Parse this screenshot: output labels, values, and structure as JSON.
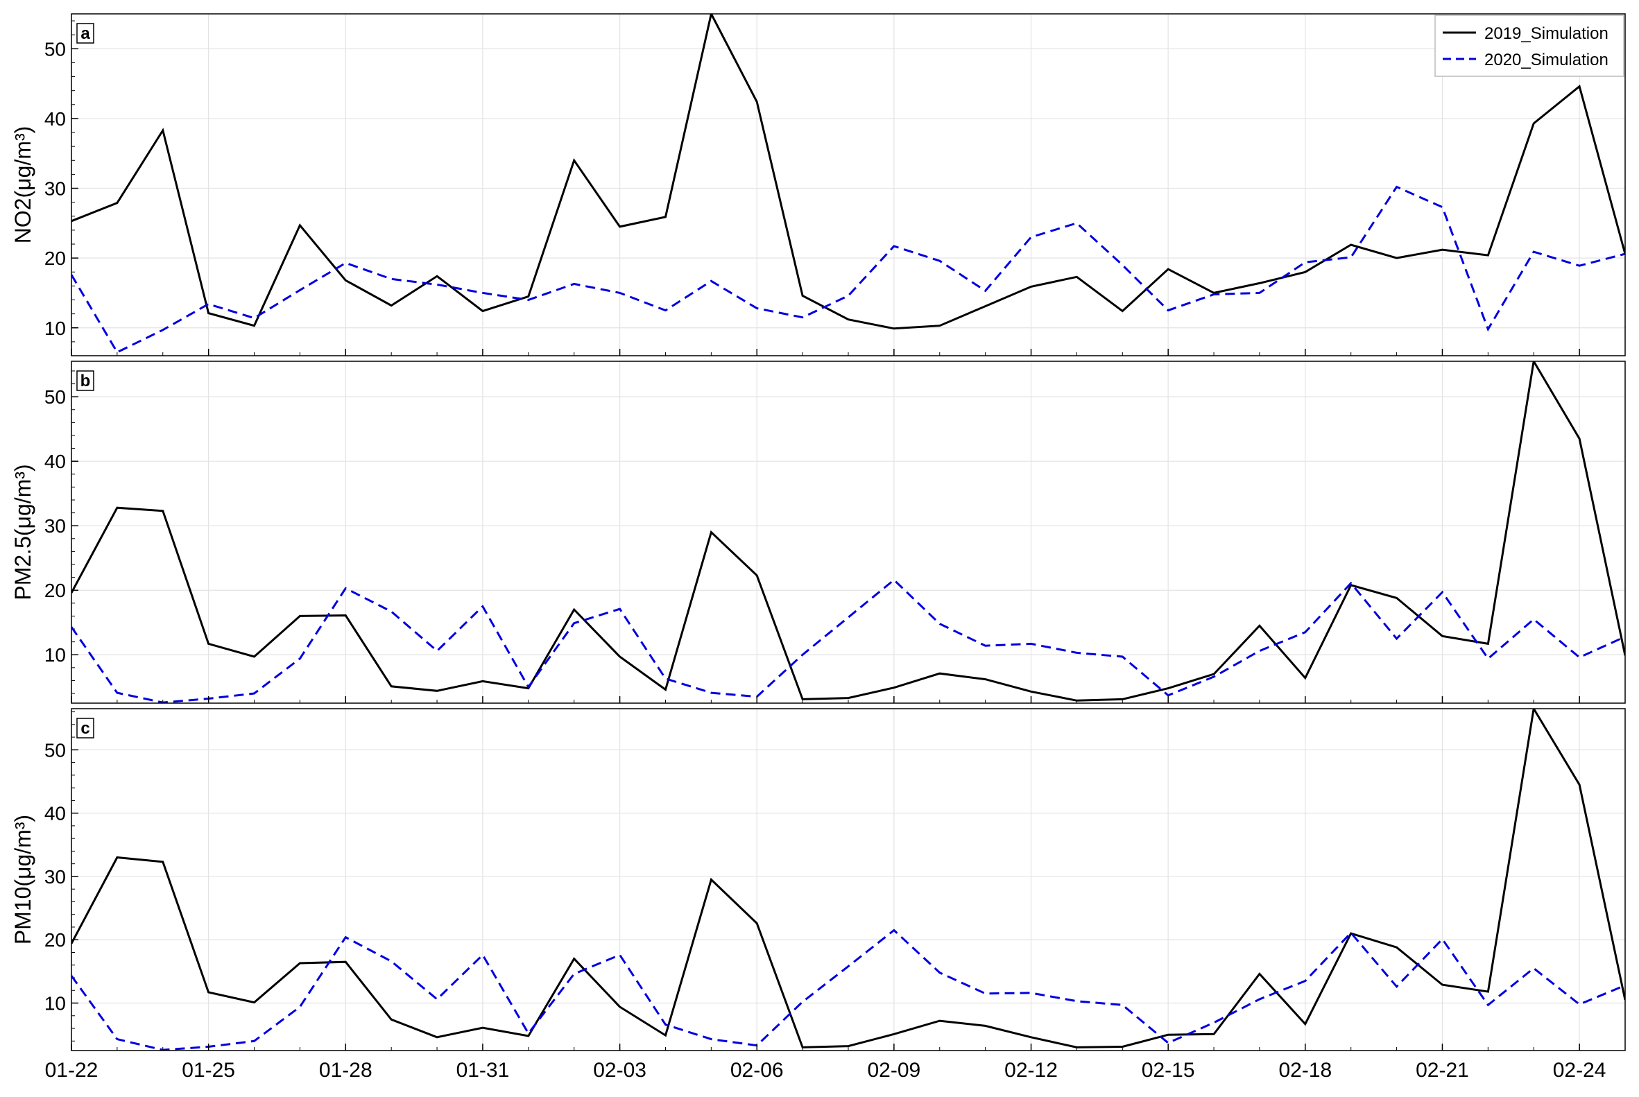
{
  "legend": {
    "position": "top-right",
    "entries": [
      {
        "label": "2019_Simulation",
        "color": "#000000",
        "style": "solid"
      },
      {
        "label": "2020_Simulation",
        "color": "#0000e0",
        "style": "dashed"
      }
    ]
  },
  "chart_data": [
    {
      "type": "line",
      "panel_label": "a",
      "ylabel": "NO2(μg/m³)",
      "xlabel": "",
      "x": [
        "01-22",
        "01-23",
        "01-24",
        "01-25",
        "01-26",
        "01-27",
        "01-28",
        "01-29",
        "01-30",
        "01-31",
        "02-01",
        "02-02",
        "02-03",
        "02-04",
        "02-05",
        "02-06",
        "02-07",
        "02-08",
        "02-09",
        "02-10",
        "02-11",
        "02-12",
        "02-13",
        "02-14",
        "02-15",
        "02-16",
        "02-17",
        "02-18",
        "02-19",
        "02-20",
        "02-21",
        "02-22",
        "02-23",
        "02-24",
        "02-25"
      ],
      "xticks": [
        "01-22",
        "01-25",
        "01-28",
        "01-31",
        "02-03",
        "02-06",
        "02-09",
        "02-12",
        "02-15",
        "02-18",
        "02-21",
        "02-24"
      ],
      "yticks": [
        10,
        20,
        30,
        40,
        50
      ],
      "ylim": [
        6,
        55
      ],
      "grid": true,
      "series": [
        {
          "name": "2019_Simulation",
          "values": [
            25.3,
            27.9,
            38.3,
            12.1,
            10.3,
            24.7,
            16.8,
            13.2,
            17.4,
            12.4,
            14.5,
            34.0,
            24.5,
            25.9,
            55.0,
            42.4,
            14.6,
            11.2,
            9.9,
            10.3,
            13.1,
            15.9,
            17.3,
            12.4,
            18.4,
            15.0,
            16.4,
            18.0,
            21.9,
            20.0,
            21.2,
            20.4,
            39.3,
            44.6,
            20.6
          ]
        },
        {
          "name": "2020_Simulation",
          "values": [
            17.6,
            6.5,
            9.7,
            13.4,
            11.4,
            15.4,
            19.3,
            17.0,
            16.2,
            15.0,
            14.0,
            16.3,
            15.0,
            12.5,
            16.7,
            12.8,
            11.5,
            14.6,
            21.7,
            19.6,
            15.3,
            23.0,
            25.0,
            19.0,
            12.5,
            14.8,
            15.0,
            19.4,
            20.1,
            30.2,
            27.3,
            9.8,
            20.9,
            18.9,
            20.6
          ]
        }
      ]
    },
    {
      "type": "line",
      "panel_label": "b",
      "ylabel": "PM2.5(μg/m³)",
      "xlabel": "",
      "x": [
        "01-22",
        "01-23",
        "01-24",
        "01-25",
        "01-26",
        "01-27",
        "01-28",
        "01-29",
        "01-30",
        "01-31",
        "02-01",
        "02-02",
        "02-03",
        "02-04",
        "02-05",
        "02-06",
        "02-07",
        "02-08",
        "02-09",
        "02-10",
        "02-11",
        "02-12",
        "02-13",
        "02-14",
        "02-15",
        "02-16",
        "02-17",
        "02-18",
        "02-19",
        "02-20",
        "02-21",
        "02-22",
        "02-23",
        "02-24",
        "02-25"
      ],
      "xticks": [
        "01-22",
        "01-25",
        "01-28",
        "01-31",
        "02-03",
        "02-06",
        "02-09",
        "02-12",
        "02-15",
        "02-18",
        "02-21",
        "02-24"
      ],
      "yticks": [
        10,
        20,
        30,
        40,
        50
      ],
      "ylim": [
        2.5,
        55.5
      ],
      "grid": true,
      "series": [
        {
          "name": "2019_Simulation",
          "values": [
            19.6,
            32.8,
            32.3,
            11.7,
            9.7,
            16.0,
            16.1,
            5.1,
            4.4,
            5.9,
            4.8,
            17.0,
            9.7,
            4.6,
            29.0,
            22.3,
            3.1,
            3.3,
            4.9,
            7.1,
            6.2,
            4.3,
            2.9,
            3.1,
            4.8,
            7.0,
            14.5,
            6.4,
            20.8,
            18.8,
            12.9,
            11.7,
            55.5,
            43.5,
            9.9
          ]
        },
        {
          "name": "2020_Simulation",
          "values": [
            14.3,
            4.1,
            2.6,
            3.2,
            4.0,
            9.4,
            20.3,
            16.7,
            10.6,
            17.5,
            5.0,
            14.9,
            17.1,
            6.3,
            4.1,
            3.5,
            10.0,
            15.8,
            21.6,
            14.8,
            11.4,
            11.7,
            10.3,
            9.7,
            3.7,
            6.6,
            10.6,
            13.5,
            21.1,
            12.5,
            19.7,
            9.4,
            15.5,
            9.6,
            12.8
          ]
        }
      ]
    },
    {
      "type": "line",
      "panel_label": "c",
      "ylabel": "PM10(μg/m³)",
      "xlabel": "",
      "x": [
        "01-22",
        "01-23",
        "01-24",
        "01-25",
        "01-26",
        "01-27",
        "01-28",
        "01-29",
        "01-30",
        "01-31",
        "02-01",
        "02-02",
        "02-03",
        "02-04",
        "02-05",
        "02-06",
        "02-07",
        "02-08",
        "02-09",
        "02-10",
        "02-11",
        "02-12",
        "02-13",
        "02-14",
        "02-15",
        "02-16",
        "02-17",
        "02-18",
        "02-19",
        "02-20",
        "02-21",
        "02-22",
        "02-23",
        "02-24",
        "02-25"
      ],
      "xticks": [
        "01-22",
        "01-25",
        "01-28",
        "01-31",
        "02-03",
        "02-06",
        "02-09",
        "02-12",
        "02-15",
        "02-18",
        "02-21",
        "02-24"
      ],
      "yticks": [
        10,
        20,
        30,
        40,
        50
      ],
      "ylim": [
        2.5,
        56.5
      ],
      "grid": true,
      "series": [
        {
          "name": "2019_Simulation",
          "values": [
            19.4,
            33.0,
            32.3,
            11.7,
            10.1,
            16.3,
            16.5,
            7.4,
            4.6,
            6.1,
            4.8,
            17.0,
            9.4,
            4.9,
            29.5,
            22.6,
            3.0,
            3.2,
            5.1,
            7.2,
            6.4,
            4.6,
            3.0,
            3.1,
            5.0,
            5.1,
            14.6,
            6.7,
            21.0,
            18.8,
            12.9,
            11.8,
            56.5,
            44.5,
            10.5
          ]
        },
        {
          "name": "2020_Simulation",
          "values": [
            14.3,
            4.3,
            2.6,
            3.1,
            4.0,
            9.4,
            20.4,
            16.6,
            10.6,
            17.6,
            5.2,
            14.6,
            17.6,
            6.6,
            4.3,
            3.3,
            10.2,
            15.8,
            21.5,
            14.8,
            11.5,
            11.6,
            10.3,
            9.7,
            3.7,
            6.9,
            10.6,
            13.5,
            21.1,
            12.6,
            20.1,
            9.7,
            15.5,
            9.8,
            12.8
          ]
        }
      ]
    }
  ]
}
